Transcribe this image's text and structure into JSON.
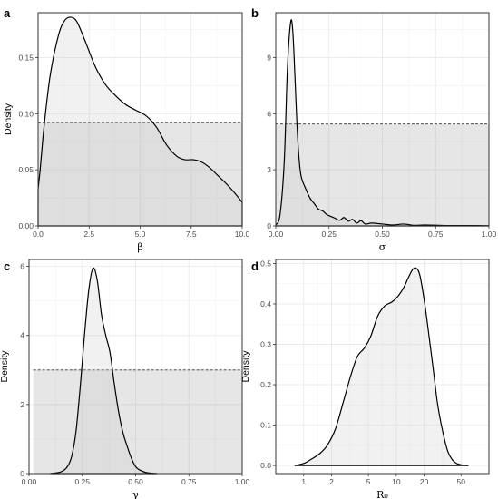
{
  "chart_data": [
    {
      "panel_label": "a",
      "type": "area",
      "xlabel": "β",
      "ylabel": "Density",
      "xlim": [
        0,
        10
      ],
      "ylim": [
        0,
        0.19
      ],
      "x_ticks": [
        "0.0",
        "2.5",
        "5.0",
        "7.5",
        "10.0"
      ],
      "x_tick_values": [
        0,
        2.5,
        5,
        7.5,
        10
      ],
      "y_ticks": [
        "0.00",
        "0.05",
        "0.10",
        "0.15"
      ],
      "y_tick_values": [
        0,
        0.05,
        0.1,
        0.15
      ],
      "prior_density": 0.092,
      "prior_range": [
        0,
        10
      ],
      "posterior": {
        "x": [
          0,
          0.1,
          0.3,
          0.6,
          1.0,
          1.3,
          1.6,
          1.9,
          2.3,
          2.8,
          3.3,
          3.8,
          4.3,
          4.8,
          5.3,
          5.8,
          6.3,
          6.8,
          7.2,
          7.6,
          8.0,
          8.4,
          8.8,
          9.2,
          9.6,
          10.0
        ],
        "y": [
          0.033,
          0.05,
          0.09,
          0.135,
          0.17,
          0.183,
          0.186,
          0.182,
          0.165,
          0.142,
          0.126,
          0.116,
          0.108,
          0.103,
          0.098,
          0.088,
          0.072,
          0.062,
          0.059,
          0.059,
          0.057,
          0.052,
          0.045,
          0.038,
          0.03,
          0.021
        ]
      }
    },
    {
      "panel_label": "b",
      "type": "area",
      "xlabel": "σ",
      "ylabel": "",
      "xlim": [
        0,
        1
      ],
      "ylim": [
        0,
        11.4
      ],
      "x_ticks": [
        "0.00",
        "0.25",
        "0.50",
        "0.75",
        "1.00"
      ],
      "x_tick_values": [
        0,
        0.25,
        0.5,
        0.75,
        1
      ],
      "y_ticks": [
        "0",
        "3",
        "6",
        "9"
      ],
      "y_tick_values": [
        0,
        3,
        6,
        9
      ],
      "prior_density": 5.45,
      "prior_range": [
        0,
        1
      ],
      "posterior": {
        "x": [
          0,
          0.02,
          0.04,
          0.055,
          0.07,
          0.08,
          0.09,
          0.1,
          0.11,
          0.12,
          0.14,
          0.16,
          0.18,
          0.2,
          0.22,
          0.24,
          0.26,
          0.28,
          0.3,
          0.32,
          0.34,
          0.36,
          0.38,
          0.4,
          0.42,
          0.45,
          0.5,
          0.55,
          0.6,
          0.65,
          0.7,
          0.8,
          0.9,
          1.0
        ],
        "y": [
          0.05,
          0.6,
          3.5,
          8.5,
          10.9,
          10.4,
          8.0,
          5.3,
          3.5,
          2.6,
          2.0,
          1.5,
          1.2,
          0.9,
          0.8,
          0.6,
          0.5,
          0.4,
          0.3,
          0.45,
          0.25,
          0.35,
          0.15,
          0.28,
          0.1,
          0.15,
          0.1,
          0.05,
          0.1,
          0.03,
          0.05,
          0.02,
          0.02,
          0.01
        ]
      }
    },
    {
      "panel_label": "c",
      "type": "area",
      "xlabel": "γ",
      "ylabel": "Density",
      "xlim": [
        0,
        1
      ],
      "ylim": [
        0,
        6.2
      ],
      "x_ticks": [
        "0.00",
        "0.25",
        "0.50",
        "0.75",
        "1.00"
      ],
      "x_tick_values": [
        0,
        0.25,
        0.5,
        0.75,
        1
      ],
      "y_ticks": [
        "0",
        "2",
        "4",
        "6"
      ],
      "y_tick_values": [
        0,
        2,
        4,
        6
      ],
      "prior_density": 3.0,
      "prior_range": [
        0.02,
        1
      ],
      "posterior": {
        "x": [
          0.1,
          0.15,
          0.18,
          0.2,
          0.22,
          0.24,
          0.26,
          0.28,
          0.3,
          0.32,
          0.34,
          0.36,
          0.38,
          0.4,
          0.42,
          0.44,
          0.46,
          0.48,
          0.5,
          0.52,
          0.55,
          0.6
        ],
        "y": [
          0,
          0.05,
          0.2,
          0.5,
          1.2,
          2.5,
          4.0,
          5.3,
          5.95,
          5.6,
          4.6,
          4.0,
          3.5,
          2.6,
          1.8,
          1.2,
          0.8,
          0.45,
          0.2,
          0.1,
          0.03,
          0
        ]
      }
    },
    {
      "panel_label": "d",
      "type": "area",
      "xlabel": "R₀",
      "ylabel": "Density",
      "x_scale": "log",
      "xlim": [
        0.5,
        100
      ],
      "ylim": [
        -0.02,
        0.51
      ],
      "x_ticks": [
        "1",
        "2",
        "5",
        "10",
        "20",
        "50"
      ],
      "x_tick_values": [
        1,
        2,
        5,
        10,
        20,
        50
      ],
      "y_ticks": [
        "0.0",
        "0.1",
        "0.2",
        "0.3",
        "0.4",
        "0.5"
      ],
      "y_tick_values": [
        0,
        0.1,
        0.2,
        0.3,
        0.4,
        0.5
      ],
      "posterior": {
        "x": [
          0.8,
          1.0,
          1.2,
          1.5,
          1.8,
          2.2,
          2.7,
          3.2,
          3.8,
          4.5,
          5.3,
          6.3,
          7.5,
          9.0,
          10.5,
          12.0,
          13.5,
          15.0,
          16.5,
          18.0,
          20.0,
          22.0,
          25.0,
          28.0,
          32.0,
          36.0,
          40.0,
          45.0,
          52.0,
          60.0
        ],
        "y": [
          0,
          0.005,
          0.015,
          0.03,
          0.05,
          0.09,
          0.16,
          0.22,
          0.27,
          0.29,
          0.32,
          0.37,
          0.395,
          0.405,
          0.42,
          0.44,
          0.465,
          0.485,
          0.488,
          0.47,
          0.41,
          0.34,
          0.24,
          0.15,
          0.08,
          0.035,
          0.015,
          0.005,
          0.001,
          0
        ]
      }
    }
  ]
}
